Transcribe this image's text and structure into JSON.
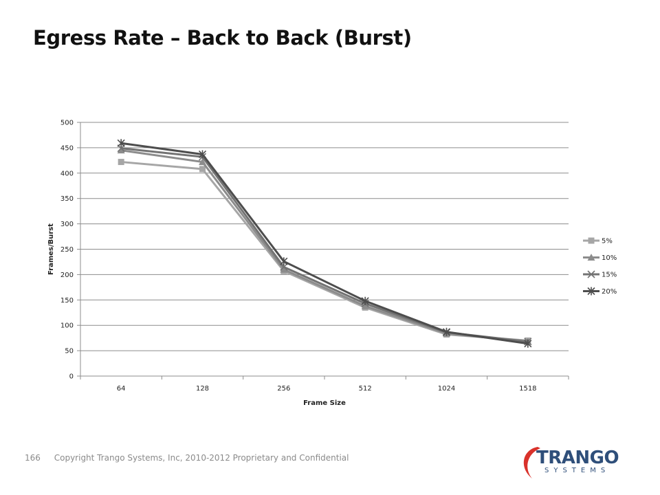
{
  "slide": {
    "title": "Egress Rate – Back to Back (Burst)"
  },
  "footer": {
    "page_number": "166",
    "copyright": "Copyright Trango Systems, Inc, 2010-2012  Proprietary and Confidential"
  },
  "logo": {
    "brand": "TRANGO",
    "sub": "SYSTEMS",
    "colors": {
      "blue": "#2f4f7a",
      "red": "#d9322b"
    }
  },
  "chart_data": {
    "type": "line",
    "title": "",
    "xlabel": "Frame Size",
    "ylabel": "Frames/Burst",
    "categories": [
      "64",
      "128",
      "256",
      "512",
      "1024",
      "1518"
    ],
    "ylim": [
      0,
      500
    ],
    "yticks": [
      0,
      50,
      100,
      150,
      200,
      250,
      300,
      350,
      400,
      450,
      500
    ],
    "grid": "horizontal",
    "legend_position": "right",
    "series": [
      {
        "name": "5%",
        "marker": "square",
        "color": "#a6a6a6",
        "values": [
          422,
          408,
          207,
          135,
          82,
          70
        ]
      },
      {
        "name": "10%",
        "marker": "triangle",
        "color": "#8c8c8c",
        "values": [
          445,
          422,
          210,
          138,
          84,
          68
        ]
      },
      {
        "name": "15%",
        "marker": "x",
        "color": "#737373",
        "values": [
          449,
          432,
          215,
          143,
          86,
          68
        ]
      },
      {
        "name": "20%",
        "marker": "star",
        "color": "#4d4d4d",
        "values": [
          459,
          437,
          226,
          148,
          87,
          64
        ]
      }
    ]
  }
}
